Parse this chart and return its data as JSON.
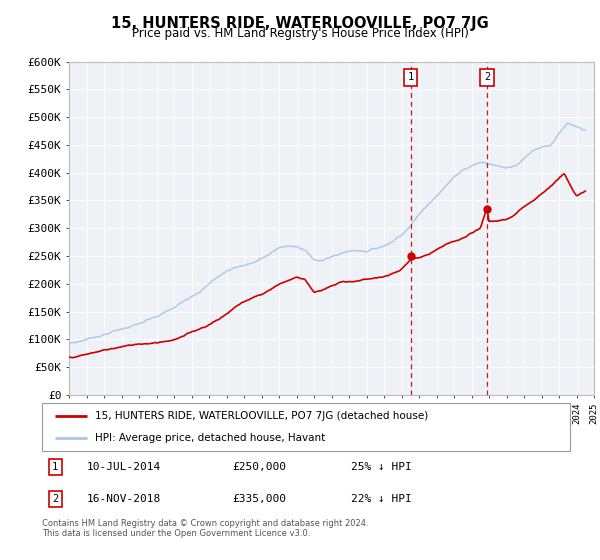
{
  "title": "15, HUNTERS RIDE, WATERLOOVILLE, PO7 7JG",
  "subtitle": "Price paid vs. HM Land Registry's House Price Index (HPI)",
  "legend_line1": "15, HUNTERS RIDE, WATERLOOVILLE, PO7 7JG (detached house)",
  "legend_line2": "HPI: Average price, detached house, Havant",
  "marker1_date": 2014.52,
  "marker1_value": 250000,
  "marker1_label": "1",
  "marker2_date": 2018.88,
  "marker2_value": 335000,
  "marker2_label": "2",
  "footer1": "Contains HM Land Registry data © Crown copyright and database right 2024.",
  "footer2": "This data is licensed under the Open Government Licence v3.0.",
  "hpi_color": "#a8c8e8",
  "price_color": "#cc0000",
  "marker_color": "#cc0000",
  "vline_color": "#cc0000",
  "background_chart": "#eef2f7",
  "grid_color": "#ffffff",
  "ylim": [
    0,
    600000
  ],
  "xlim_start": 1995,
  "xlim_end": 2025,
  "yticks": [
    0,
    50000,
    100000,
    150000,
    200000,
    250000,
    300000,
    350000,
    400000,
    450000,
    500000,
    550000,
    600000
  ],
  "hpi_years": [
    1995.0,
    1995.5,
    1996.0,
    1996.5,
    1997.0,
    1997.5,
    1998.0,
    1998.5,
    1999.0,
    1999.5,
    2000.0,
    2000.5,
    2001.0,
    2001.5,
    2002.0,
    2002.5,
    2003.0,
    2003.5,
    2004.0,
    2004.5,
    2005.0,
    2005.5,
    2006.0,
    2006.5,
    2007.0,
    2007.5,
    2008.0,
    2008.5,
    2009.0,
    2009.5,
    2010.0,
    2010.5,
    2011.0,
    2011.5,
    2012.0,
    2012.5,
    2013.0,
    2013.5,
    2014.0,
    2014.5,
    2015.0,
    2015.5,
    2016.0,
    2016.5,
    2017.0,
    2017.5,
    2018.0,
    2018.5,
    2019.0,
    2019.5,
    2020.0,
    2020.5,
    2021.0,
    2021.5,
    2022.0,
    2022.5,
    2023.0,
    2023.5,
    2024.0,
    2024.5
  ],
  "hpi_values": [
    92000,
    95000,
    100000,
    105000,
    110000,
    116000,
    120000,
    126000,
    130000,
    136000,
    140000,
    148000,
    155000,
    165000,
    178000,
    190000,
    202000,
    215000,
    225000,
    232000,
    237000,
    242000,
    250000,
    258000,
    268000,
    272000,
    270000,
    262000,
    248000,
    246000,
    252000,
    258000,
    263000,
    265000,
    265000,
    270000,
    275000,
    285000,
    298000,
    315000,
    335000,
    352000,
    372000,
    390000,
    405000,
    420000,
    428000,
    435000,
    432000,
    428000,
    425000,
    432000,
    445000,
    460000,
    468000,
    472000,
    492000,
    510000,
    500000,
    492000
  ],
  "price_years": [
    1995.0,
    1995.5,
    1996.0,
    1996.5,
    1997.0,
    1997.5,
    1998.0,
    1998.5,
    1999.0,
    1999.5,
    2000.0,
    2000.5,
    2001.0,
    2001.5,
    2002.0,
    2002.5,
    2003.0,
    2003.5,
    2004.0,
    2004.5,
    2005.0,
    2005.5,
    2006.0,
    2006.5,
    2007.0,
    2007.5,
    2008.0,
    2008.5,
    2009.0,
    2009.5,
    2010.0,
    2010.5,
    2011.0,
    2011.5,
    2012.0,
    2012.5,
    2013.0,
    2013.5,
    2014.0,
    2014.52,
    2015.0,
    2015.5,
    2016.0,
    2016.5,
    2017.0,
    2017.5,
    2018.0,
    2018.5,
    2018.88,
    2019.0,
    2019.5,
    2020.0,
    2020.5,
    2021.0,
    2021.5,
    2022.0,
    2022.5,
    2023.0,
    2023.3,
    2023.7,
    2024.0,
    2024.5
  ],
  "price_values": [
    68000,
    70000,
    73000,
    76000,
    80000,
    83000,
    86000,
    88000,
    91000,
    93000,
    96000,
    99000,
    103000,
    108000,
    115000,
    122000,
    130000,
    140000,
    150000,
    163000,
    172000,
    180000,
    186000,
    195000,
    205000,
    212000,
    218000,
    215000,
    193000,
    196000,
    202000,
    208000,
    210000,
    212000,
    215000,
    218000,
    220000,
    225000,
    232000,
    250000,
    253000,
    256000,
    265000,
    272000,
    278000,
    283000,
    290000,
    298000,
    335000,
    310000,
    312000,
    315000,
    322000,
    335000,
    348000,
    362000,
    375000,
    390000,
    400000,
    378000,
    362000,
    368000
  ]
}
